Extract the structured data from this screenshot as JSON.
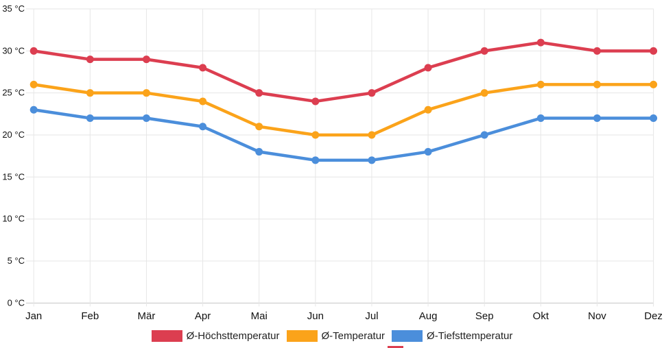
{
  "chart_data": {
    "type": "line",
    "title": "",
    "categories": [
      "Jan",
      "Feb",
      "Mär",
      "Apr",
      "Mai",
      "Jun",
      "Jul",
      "Aug",
      "Sep",
      "Okt",
      "Nov",
      "Dez"
    ],
    "series": [
      {
        "name": "Ø-Höchsttemperatur",
        "color": "#dc3e50",
        "values": [
          30,
          29,
          29,
          28,
          25,
          24,
          25,
          28,
          30,
          31,
          30,
          30
        ]
      },
      {
        "name": "Ø-Temperatur",
        "color": "#fba31a",
        "values": [
          26,
          25,
          25,
          24,
          21,
          20,
          20,
          23,
          25,
          26,
          26,
          26
        ]
      },
      {
        "name": "Ø-Tiefsttemperatur",
        "color": "#4b8edb",
        "values": [
          23,
          22,
          22,
          21,
          18,
          17,
          17,
          18,
          20,
          22,
          22,
          22
        ]
      }
    ],
    "ylim": [
      0,
      35
    ],
    "y_ticks": [
      35,
      30,
      25,
      20,
      15,
      10,
      5,
      0
    ],
    "y_tick_labels": [
      "35 °C",
      "30 °C",
      "25 °C",
      "20 °C",
      "15 °C",
      "10 °C",
      "5 °C",
      "0 °C"
    ],
    "xlabel": "",
    "ylabel": "",
    "grid": true,
    "legend_position": "bottom"
  },
  "colors": {
    "background": "#ffffff",
    "gridline": "#e6e6e6",
    "axis_line": "#c5c5c5",
    "tick_text": "#111111",
    "legend_text": "#222222",
    "cutoff_red": "#dc3e50"
  }
}
